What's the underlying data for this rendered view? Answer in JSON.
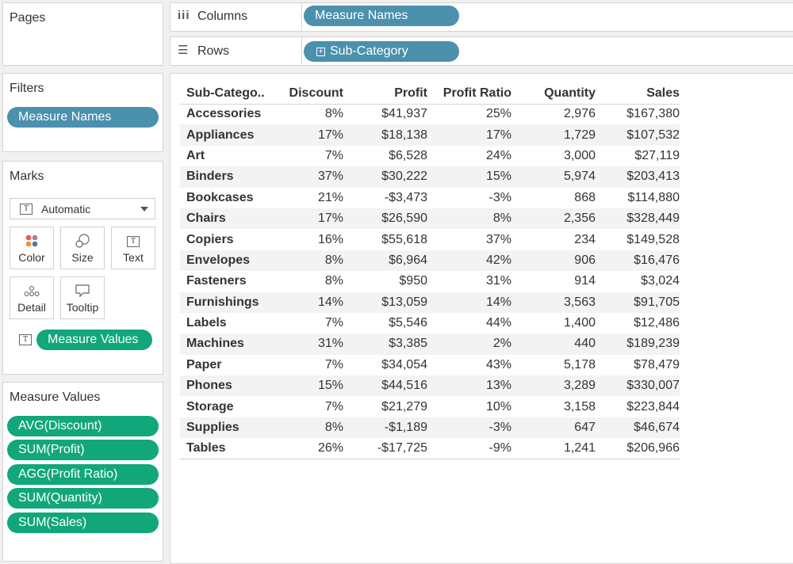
{
  "pages": {
    "title": "Pages"
  },
  "columns_shelf": {
    "label": "Columns",
    "pill": "Measure Names"
  },
  "rows_shelf": {
    "label": "Rows",
    "pill": "Sub-Category"
  },
  "filters": {
    "title": "Filters",
    "pill": "Measure Names"
  },
  "marks": {
    "title": "Marks",
    "type_select": "Automatic",
    "buttons": {
      "color": "Color",
      "size": "Size",
      "text": "Text",
      "detail": "Detail",
      "tooltip": "Tooltip"
    },
    "text_pill": "Measure Values"
  },
  "measure_values": {
    "title": "Measure Values",
    "items": [
      "AVG(Discount)",
      "SUM(Profit)",
      "AGG(Profit Ratio)",
      "SUM(Quantity)",
      "SUM(Sales)"
    ]
  },
  "table": {
    "headers": [
      "Sub-Catego..",
      "Discount",
      "Profit",
      "Profit Ratio",
      "Quantity",
      "Sales"
    ],
    "rows": [
      [
        "Accessories",
        "8%",
        "$41,937",
        "25%",
        "2,976",
        "$167,380"
      ],
      [
        "Appliances",
        "17%",
        "$18,138",
        "17%",
        "1,729",
        "$107,532"
      ],
      [
        "Art",
        "7%",
        "$6,528",
        "24%",
        "3,000",
        "$27,119"
      ],
      [
        "Binders",
        "37%",
        "$30,222",
        "15%",
        "5,974",
        "$203,413"
      ],
      [
        "Bookcases",
        "21%",
        "-$3,473",
        "-3%",
        "868",
        "$114,880"
      ],
      [
        "Chairs",
        "17%",
        "$26,590",
        "8%",
        "2,356",
        "$328,449"
      ],
      [
        "Copiers",
        "16%",
        "$55,618",
        "37%",
        "234",
        "$149,528"
      ],
      [
        "Envelopes",
        "8%",
        "$6,964",
        "42%",
        "906",
        "$16,476"
      ],
      [
        "Fasteners",
        "8%",
        "$950",
        "31%",
        "914",
        "$3,024"
      ],
      [
        "Furnishings",
        "14%",
        "$13,059",
        "14%",
        "3,563",
        "$91,705"
      ],
      [
        "Labels",
        "7%",
        "$5,546",
        "44%",
        "1,400",
        "$12,486"
      ],
      [
        "Machines",
        "31%",
        "$3,385",
        "2%",
        "440",
        "$189,239"
      ],
      [
        "Paper",
        "7%",
        "$34,054",
        "43%",
        "5,178",
        "$78,479"
      ],
      [
        "Phones",
        "15%",
        "$44,516",
        "13%",
        "3,289",
        "$330,007"
      ],
      [
        "Storage",
        "7%",
        "$21,279",
        "10%",
        "3,158",
        "$223,844"
      ],
      [
        "Supplies",
        "8%",
        "-$1,189",
        "-3%",
        "647",
        "$46,674"
      ],
      [
        "Tables",
        "26%",
        "-$17,725",
        "-9%",
        "1,241",
        "$206,966"
      ]
    ]
  },
  "colors": {
    "pill_blue": "#4b90ad",
    "pill_green": "#12a77a"
  }
}
